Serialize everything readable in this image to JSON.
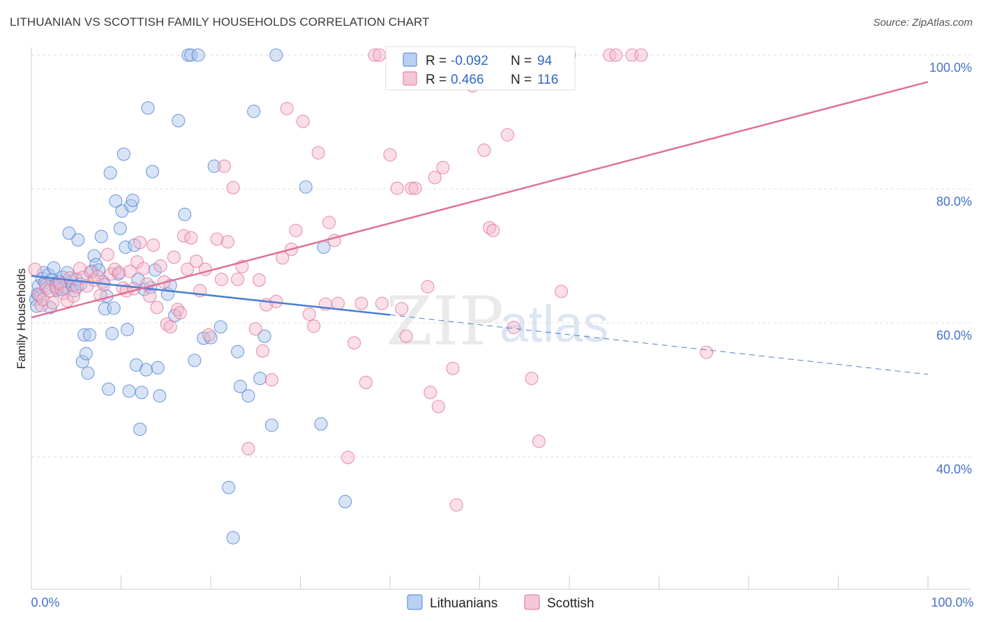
{
  "title": "LITHUANIAN VS SCOTTISH FAMILY HOUSEHOLDS CORRELATION CHART",
  "source": "Source: ZipAtlas.com",
  "watermark": {
    "zip": "ZIP",
    "atlas": "atlas"
  },
  "chart_data": {
    "type": "scatter",
    "xlabel": "",
    "ylabel": "Family Households",
    "xlim": [
      0,
      100
    ],
    "ylim": [
      20,
      101
    ],
    "x_tick_labels": [
      {
        "value": 0,
        "label": "0.0%"
      },
      {
        "value": 100,
        "label": "100.0%"
      }
    ],
    "y_tick_labels": [
      {
        "value": 40,
        "label": "40.0%"
      },
      {
        "value": 60,
        "label": "60.0%"
      },
      {
        "value": 80,
        "label": "80.0%"
      },
      {
        "value": 100,
        "label": "100.0%"
      }
    ],
    "grid": true,
    "legend_position": "bottom-center",
    "stats_box_position": "top-center",
    "series": [
      {
        "name": "Lithuanians",
        "color": "#4a7fd4",
        "fill": "#a9c4ec",
        "stats": {
          "r_label": "R = ",
          "r": "-0.092",
          "n_label": "N = ",
          "n": "94"
        },
        "trend": {
          "x0": 0,
          "y0": 67.0,
          "x1": 40,
          "y1": 61.2,
          "dash_to": 100,
          "dash_y": 52.3
        },
        "points": [
          [
            0.5,
            63.5
          ],
          [
            0.6,
            62.5
          ],
          [
            0.7,
            64.3
          ],
          [
            0.8,
            65.5
          ],
          [
            1.0,
            64.0
          ],
          [
            1.2,
            66.6
          ],
          [
            1.4,
            67.5
          ],
          [
            1.5,
            66.0
          ],
          [
            1.7,
            65.2
          ],
          [
            1.9,
            67.2
          ],
          [
            2.1,
            62.3
          ],
          [
            2.3,
            66.4
          ],
          [
            2.5,
            68.2
          ],
          [
            2.7,
            65.6
          ],
          [
            2.9,
            64.9
          ],
          [
            3.1,
            66.2
          ],
          [
            3.3,
            65.0
          ],
          [
            3.5,
            66.8
          ],
          [
            3.7,
            65.3
          ],
          [
            4.0,
            67.5
          ],
          [
            4.2,
            73.4
          ],
          [
            4.4,
            66.2
          ],
          [
            4.6,
            65.5
          ],
          [
            4.8,
            64.8
          ],
          [
            5.0,
            66.5
          ],
          [
            5.2,
            72.4
          ],
          [
            5.5,
            65.8
          ],
          [
            5.7,
            54.2
          ],
          [
            5.9,
            58.2
          ],
          [
            6.1,
            55.4
          ],
          [
            6.3,
            52.5
          ],
          [
            6.5,
            58.2
          ],
          [
            6.8,
            67.7
          ],
          [
            7.0,
            70.0
          ],
          [
            7.2,
            68.7
          ],
          [
            7.5,
            67.9
          ],
          [
            7.8,
            72.9
          ],
          [
            8.0,
            66.1
          ],
          [
            8.2,
            62.1
          ],
          [
            8.4,
            64.0
          ],
          [
            8.6,
            50.1
          ],
          [
            8.8,
            82.4
          ],
          [
            9.0,
            58.4
          ],
          [
            9.2,
            62.2
          ],
          [
            9.4,
            78.2
          ],
          [
            9.7,
            67.3
          ],
          [
            9.9,
            74.1
          ],
          [
            10.1,
            76.7
          ],
          [
            10.3,
            85.2
          ],
          [
            10.5,
            71.3
          ],
          [
            10.7,
            59.0
          ],
          [
            10.9,
            49.8
          ],
          [
            11.1,
            77.5
          ],
          [
            11.3,
            78.3
          ],
          [
            11.5,
            71.6
          ],
          [
            11.7,
            53.7
          ],
          [
            11.9,
            66.5
          ],
          [
            12.1,
            44.1
          ],
          [
            12.3,
            49.6
          ],
          [
            12.6,
            65.0
          ],
          [
            12.8,
            53.0
          ],
          [
            13.0,
            92.1
          ],
          [
            13.3,
            65.3
          ],
          [
            13.5,
            82.6
          ],
          [
            13.8,
            67.9
          ],
          [
            14.1,
            53.3
          ],
          [
            14.3,
            49.1
          ],
          [
            15.2,
            64.3
          ],
          [
            15.5,
            65.6
          ],
          [
            16.0,
            61.1
          ],
          [
            16.4,
            90.2
          ],
          [
            17.1,
            76.2
          ],
          [
            17.5,
            100.0
          ],
          [
            17.8,
            100.0
          ],
          [
            18.2,
            54.4
          ],
          [
            18.6,
            100.0
          ],
          [
            19.2,
            57.7
          ],
          [
            20.0,
            57.8
          ],
          [
            20.4,
            83.4
          ],
          [
            21.1,
            59.4
          ],
          [
            22.0,
            35.4
          ],
          [
            22.5,
            27.9
          ],
          [
            23.0,
            55.7
          ],
          [
            23.3,
            50.5
          ],
          [
            24.2,
            49.1
          ],
          [
            24.8,
            91.6
          ],
          [
            25.5,
            51.7
          ],
          [
            26.0,
            58.0
          ],
          [
            26.8,
            44.7
          ],
          [
            27.3,
            100.0
          ],
          [
            30.6,
            80.3
          ],
          [
            32.3,
            44.9
          ],
          [
            32.6,
            71.3
          ],
          [
            35.0,
            33.3
          ]
        ]
      },
      {
        "name": "Scottish",
        "color": "#e07096",
        "fill": "#f3b9cc",
        "stats": {
          "r_label": "R = ",
          "r": "0.466",
          "n_label": "N = ",
          "n": "116"
        },
        "trend": {
          "x0": 0,
          "y0": 60.8,
          "x1": 100,
          "y1": 96.0
        },
        "points": [
          [
            0.4,
            68.0
          ],
          [
            0.8,
            64.2
          ],
          [
            1.1,
            62.6
          ],
          [
            1.3,
            63.5
          ],
          [
            1.6,
            65.6
          ],
          [
            2.0,
            64.8
          ],
          [
            2.4,
            63.0
          ],
          [
            2.8,
            65.3
          ],
          [
            3.2,
            65.9
          ],
          [
            3.6,
            64.4
          ],
          [
            4.0,
            63.3
          ],
          [
            4.3,
            66.7
          ],
          [
            4.7,
            64.0
          ],
          [
            5.1,
            65.4
          ],
          [
            5.4,
            68.1
          ],
          [
            5.8,
            66.8
          ],
          [
            6.2,
            65.5
          ],
          [
            6.6,
            67.6
          ],
          [
            7.0,
            66.4
          ],
          [
            7.4,
            66.9
          ],
          [
            7.7,
            64.1
          ],
          [
            8.1,
            65.7
          ],
          [
            8.5,
            70.2
          ],
          [
            8.9,
            67.3
          ],
          [
            9.3,
            68.0
          ],
          [
            9.8,
            67.5
          ],
          [
            10.2,
            65.2
          ],
          [
            10.6,
            64.8
          ],
          [
            11.0,
            67.7
          ],
          [
            11.4,
            65.1
          ],
          [
            11.8,
            69.1
          ],
          [
            12.1,
            72.0
          ],
          [
            12.5,
            68.1
          ],
          [
            12.9,
            65.8
          ],
          [
            13.2,
            64.0
          ],
          [
            13.6,
            71.6
          ],
          [
            14.0,
            62.3
          ],
          [
            14.4,
            68.5
          ],
          [
            14.8,
            66.1
          ],
          [
            15.1,
            59.8
          ],
          [
            15.5,
            59.4
          ],
          [
            15.9,
            69.8
          ],
          [
            16.3,
            62.0
          ],
          [
            16.6,
            61.5
          ],
          [
            17.0,
            73.0
          ],
          [
            17.4,
            68.0
          ],
          [
            17.8,
            72.7
          ],
          [
            18.4,
            69.2
          ],
          [
            18.8,
            64.8
          ],
          [
            19.4,
            68.0
          ],
          [
            19.8,
            58.2
          ],
          [
            20.7,
            72.5
          ],
          [
            21.2,
            66.5
          ],
          [
            21.5,
            83.4
          ],
          [
            21.9,
            72.1
          ],
          [
            22.5,
            80.2
          ],
          [
            23.0,
            66.5
          ],
          [
            23.5,
            68.4
          ],
          [
            24.2,
            41.2
          ],
          [
            25.0,
            59.1
          ],
          [
            25.4,
            66.4
          ],
          [
            25.8,
            55.8
          ],
          [
            26.2,
            62.7
          ],
          [
            26.8,
            51.5
          ],
          [
            27.3,
            63.2
          ],
          [
            28.0,
            69.7
          ],
          [
            28.5,
            92.0
          ],
          [
            29.0,
            71.0
          ],
          [
            29.5,
            73.8
          ],
          [
            30.3,
            90.1
          ],
          [
            31.0,
            61.3
          ],
          [
            31.5,
            59.5
          ],
          [
            32.0,
            85.4
          ],
          [
            32.8,
            62.8
          ],
          [
            33.2,
            75.0
          ],
          [
            33.8,
            72.3
          ],
          [
            34.2,
            62.9
          ],
          [
            35.3,
            39.9
          ],
          [
            36.0,
            57.0
          ],
          [
            36.8,
            62.9
          ],
          [
            37.3,
            51.1
          ],
          [
            38.3,
            100.0
          ],
          [
            38.8,
            100.0
          ],
          [
            39.1,
            62.9
          ],
          [
            40.0,
            85.1
          ],
          [
            40.8,
            80.1
          ],
          [
            41.3,
            62.1
          ],
          [
            41.8,
            58.0
          ],
          [
            42.4,
            80.1
          ],
          [
            42.8,
            80.1
          ],
          [
            43.2,
            100.0
          ],
          [
            44.2,
            65.4
          ],
          [
            44.5,
            49.6
          ],
          [
            45.0,
            81.7
          ],
          [
            45.4,
            47.5
          ],
          [
            45.9,
            83.2
          ],
          [
            47.0,
            53.2
          ],
          [
            47.4,
            32.8
          ],
          [
            48.1,
            97.2
          ],
          [
            49.2,
            95.4
          ],
          [
            50.5,
            85.8
          ],
          [
            51.1,
            74.2
          ],
          [
            51.5,
            73.8
          ],
          [
            52.1,
            100.0
          ],
          [
            53.1,
            88.1
          ],
          [
            53.8,
            59.3
          ],
          [
            54.5,
            100.0
          ],
          [
            55.1,
            96.9
          ],
          [
            55.8,
            51.7
          ],
          [
            56.6,
            42.3
          ],
          [
            57.7,
            100.0
          ],
          [
            59.1,
            64.7
          ],
          [
            60.0,
            100.0
          ],
          [
            64.5,
            100.0
          ],
          [
            65.2,
            100.0
          ],
          [
            67.0,
            100.0
          ],
          [
            68.0,
            100.0
          ],
          [
            75.3,
            55.6
          ]
        ]
      }
    ]
  }
}
